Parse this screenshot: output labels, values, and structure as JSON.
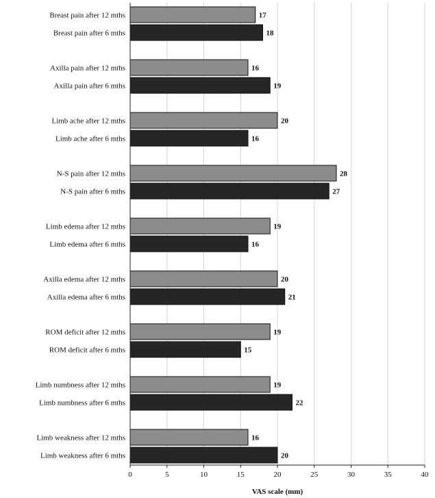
{
  "chart_data": {
    "type": "bar",
    "orientation": "horizontal",
    "xlabel": "VAS scale (mm)",
    "xlim": [
      0,
      40
    ],
    "xticks": [
      0,
      5,
      10,
      15,
      20,
      25,
      30,
      35,
      40
    ],
    "grid": true,
    "colors": {
      "after_12_mths": "#8c8c8c",
      "after_6_mths": "#262626"
    },
    "groups": [
      {
        "bars": [
          {
            "label": "Breast pain after 12 mths",
            "value": 17,
            "period": "after_12_mths"
          },
          {
            "label": "Breast pain after 6 mths",
            "value": 18,
            "period": "after_6_mths"
          }
        ]
      },
      {
        "bars": [
          {
            "label": "Axilla pain after 12 mths",
            "value": 16,
            "period": "after_12_mths"
          },
          {
            "label": "Axilla pain after 6 mths",
            "value": 19,
            "period": "after_6_mths"
          }
        ]
      },
      {
        "bars": [
          {
            "label": "Limb ache after 12 mths",
            "value": 20,
            "period": "after_12_mths"
          },
          {
            "label": "Limb ache after 6 mths",
            "value": 16,
            "period": "after_6_mths"
          }
        ]
      },
      {
        "bars": [
          {
            "label": "N-S pain after 12 mths",
            "value": 28,
            "period": "after_12_mths"
          },
          {
            "label": "N-S pain after 6 mths",
            "value": 27,
            "period": "after_6_mths"
          }
        ]
      },
      {
        "bars": [
          {
            "label": "Limb edema after 12 mths",
            "value": 19,
            "period": "after_12_mths"
          },
          {
            "label": "Limb edema after 6 mths",
            "value": 16,
            "period": "after_6_mths"
          }
        ]
      },
      {
        "bars": [
          {
            "label": "Axilla edema after 12 mths",
            "value": 20,
            "period": "after_12_mths"
          },
          {
            "label": "Axilla edema after 6 mths",
            "value": 21,
            "period": "after_6_mths"
          }
        ]
      },
      {
        "bars": [
          {
            "label": "ROM deficit after 12 mths",
            "value": 19,
            "period": "after_12_mths"
          },
          {
            "label": "ROM deficit after 6 mths",
            "value": 15,
            "period": "after_6_mths"
          }
        ]
      },
      {
        "bars": [
          {
            "label": "Limb numbness after 12 mths",
            "value": 19,
            "period": "after_12_mths"
          },
          {
            "label": "Limb numbness after 6 mths",
            "value": 22,
            "period": "after_6_mths"
          }
        ]
      },
      {
        "bars": [
          {
            "label": "Limb weakness after 12 mths",
            "value": 16,
            "period": "after_12_mths"
          },
          {
            "label": "Limb weakness after 6 mths",
            "value": 20,
            "period": "after_6_mths"
          }
        ]
      }
    ]
  }
}
